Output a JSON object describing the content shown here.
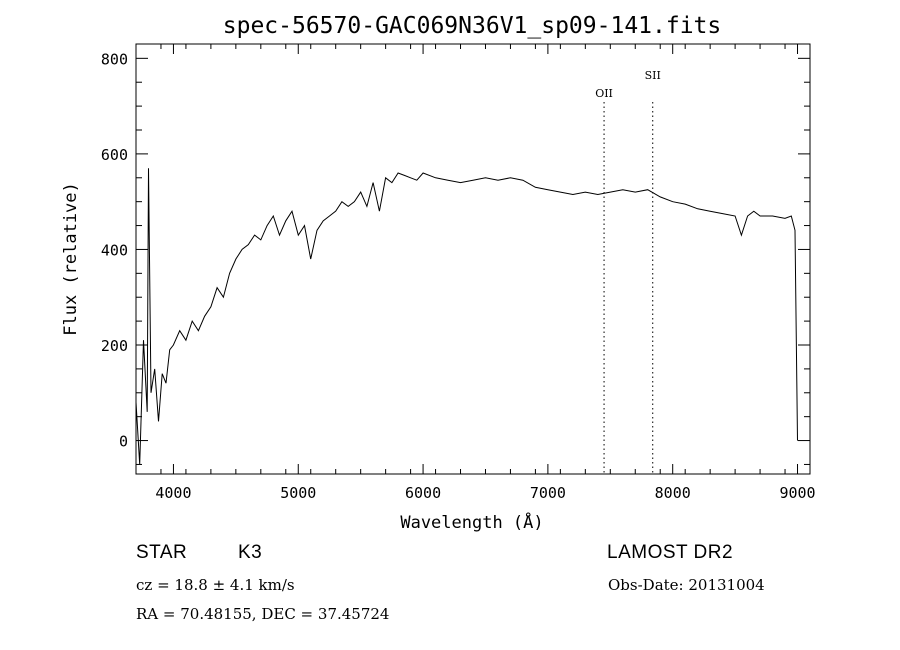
{
  "chart_data": {
    "type": "line",
    "title": "spec-56570-GAC069N36V1_sp09-141.fits",
    "xlabel": "Wavelength (Å)",
    "ylabel": "Flux (relative)",
    "xlim": [
      3700,
      9100
    ],
    "ylim": [
      -70,
      830
    ],
    "xticks": [
      4000,
      5000,
      6000,
      7000,
      8000,
      9000
    ],
    "yticks": [
      0,
      200,
      400,
      600,
      800
    ],
    "grid": false,
    "lines": [
      {
        "label": "OII",
        "x": 7450
      },
      {
        "label": "SII",
        "x": 7840
      }
    ],
    "series": [
      {
        "x": [
          3700,
          3730,
          3760,
          3790,
          3800,
          3820,
          3850,
          3880,
          3910,
          3940,
          3970,
          4000,
          4050,
          4100,
          4150,
          4200,
          4250,
          4300,
          4350,
          4400,
          4450,
          4500,
          4550,
          4600,
          4650,
          4700,
          4750,
          4800,
          4850,
          4900,
          4950,
          5000,
          5050,
          5100,
          5150,
          5200,
          5250,
          5300,
          5350,
          5400,
          5450,
          5500,
          5550,
          5600,
          5650,
          5700,
          5750,
          5800,
          5850,
          5900,
          5950,
          6000,
          6100,
          6200,
          6300,
          6400,
          6500,
          6600,
          6700,
          6800,
          6900,
          7000,
          7100,
          7200,
          7300,
          7400,
          7500,
          7600,
          7700,
          7800,
          7900,
          8000,
          8100,
          8200,
          8300,
          8400,
          8500,
          8550,
          8600,
          8650,
          8700,
          8800,
          8900,
          8950,
          8980,
          9000
        ],
        "y": [
          80,
          -50,
          210,
          60,
          570,
          100,
          150,
          40,
          140,
          120,
          190,
          200,
          230,
          210,
          250,
          230,
          260,
          280,
          320,
          300,
          350,
          380,
          400,
          410,
          430,
          420,
          450,
          470,
          430,
          460,
          480,
          430,
          450,
          380,
          440,
          460,
          470,
          480,
          500,
          490,
          500,
          520,
          490,
          540,
          480,
          550,
          540,
          560,
          555,
          550,
          545,
          560,
          550,
          545,
          540,
          545,
          550,
          545,
          550,
          545,
          530,
          525,
          520,
          515,
          520,
          515,
          520,
          525,
          520,
          525,
          510,
          500,
          495,
          485,
          480,
          475,
          470,
          430,
          470,
          480,
          470,
          470,
          465,
          470,
          440,
          0
        ]
      }
    ]
  },
  "info": {
    "object_class": "STAR",
    "subclass": "K3",
    "survey": "LAMOST DR2",
    "redshift": "cz = 18.8 ± 4.1 km/s",
    "obs_date": "Obs-Date: 20131004",
    "coords": "RA =  70.48155, DEC =  37.45724"
  }
}
